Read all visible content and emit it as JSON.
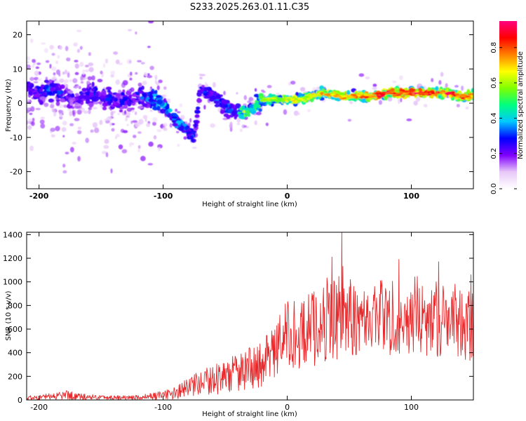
{
  "chart_data": [
    {
      "type": "heatmap",
      "title": "S233.2025.263.01.11.C35",
      "xlabel": "Height of straight line (km)",
      "ylabel": "Frequency (Hz)",
      "xlim": [
        -210,
        150
      ],
      "ylim": [
        -25,
        24
      ],
      "xticks": [
        -200,
        -100,
        0,
        100
      ],
      "yticks": [
        -20,
        -10,
        0,
        10,
        20
      ],
      "colorbar": {
        "label": "Normalized spectral amplitude",
        "range": [
          0.0,
          0.95
        ],
        "ticks": [
          0.0,
          0.2,
          0.4,
          0.6,
          0.8
        ],
        "tick_labels": [
          "0.0",
          "0.2",
          "0.4",
          "0.6",
          "0.8"
        ],
        "stops": [
          "#ffffff",
          "#e8c8f8",
          "#8000ff",
          "#0000ff",
          "#00c8ff",
          "#00ff80",
          "#80ff00",
          "#ffff00",
          "#ff8000",
          "#ff0000",
          "#ff0080"
        ]
      },
      "ridge": {
        "x": [
          -210,
          -200,
          -190,
          -180,
          -170,
          -160,
          -150,
          -140,
          -130,
          -120,
          -110,
          -100,
          -90,
          -80,
          -75,
          -70,
          -60,
          -50,
          -40,
          -35,
          -30,
          -20,
          -10,
          0,
          10,
          20,
          30,
          40,
          50,
          60,
          70,
          80,
          90,
          100,
          110,
          120,
          130,
          140,
          150
        ],
        "y": [
          4,
          3,
          4,
          2,
          1,
          3,
          2,
          1,
          1,
          2,
          1,
          0,
          -5,
          -8,
          -10,
          4,
          2,
          -1,
          -3,
          -3,
          -2,
          1,
          1,
          1,
          1,
          2,
          3,
          2,
          2,
          2,
          2,
          3,
          3,
          3,
          3,
          3,
          3,
          2,
          2
        ],
        "amplitude": [
          0.3,
          0.3,
          0.35,
          0.3,
          0.25,
          0.3,
          0.3,
          0.3,
          0.3,
          0.3,
          0.4,
          0.45,
          0.4,
          0.4,
          0.3,
          0.3,
          0.35,
          0.35,
          0.4,
          0.7,
          0.5,
          0.65,
          0.6,
          0.7,
          0.7,
          0.7,
          0.75,
          0.75,
          0.8,
          0.85,
          0.85,
          0.9,
          0.85,
          0.9,
          0.9,
          0.9,
          0.9,
          0.85,
          0.8
        ]
      }
    },
    {
      "type": "line",
      "xlabel": "Height of straight line (km)",
      "ylabel": "SNR (10 * v/v)",
      "xlim": [
        -210,
        150
      ],
      "ylim": [
        0,
        1420
      ],
      "xticks": [
        -200,
        -100,
        0,
        100
      ],
      "yticks": [
        0,
        200,
        400,
        600,
        800,
        1000,
        1200,
        1400
      ],
      "series": [
        {
          "name": "SNR",
          "color": "#e8282a",
          "envelope": {
            "x": [
              -210,
              -190,
              -175,
              -170,
              -160,
              -140,
              -120,
              -100,
              -90,
              -80,
              -70,
              -60,
              -50,
              -40,
              -30,
              -20,
              -10,
              0,
              10,
              20,
              30,
              40,
              45,
              50,
              60,
              70,
              80,
              90,
              100,
              110,
              120,
              130,
              140,
              150
            ],
            "mean": [
              15,
              30,
              45,
              30,
              25,
              20,
              20,
              40,
              60,
              100,
              140,
              170,
              200,
              230,
              270,
              300,
              420,
              560,
              550,
              600,
              680,
              720,
              760,
              700,
              680,
              700,
              720,
              700,
              700,
              720,
              680,
              700,
              620,
              640
            ],
            "amplitude": [
              20,
              30,
              50,
              35,
              25,
              20,
              25,
              40,
              60,
              100,
              120,
              140,
              160,
              180,
              200,
              220,
              260,
              320,
              320,
              360,
              400,
              420,
              450,
              380,
              320,
              340,
              380,
              340,
              380,
              380,
              360,
              380,
              340,
              340
            ]
          },
          "notable_peaks": [
            {
              "x": 44,
              "y": 1420
            },
            {
              "x": 36,
              "y": 1210
            },
            {
              "x": 90,
              "y": 1190
            },
            {
              "x": 122,
              "y": 1170
            },
            {
              "x": 148,
              "y": 1060
            }
          ]
        }
      ]
    }
  ]
}
